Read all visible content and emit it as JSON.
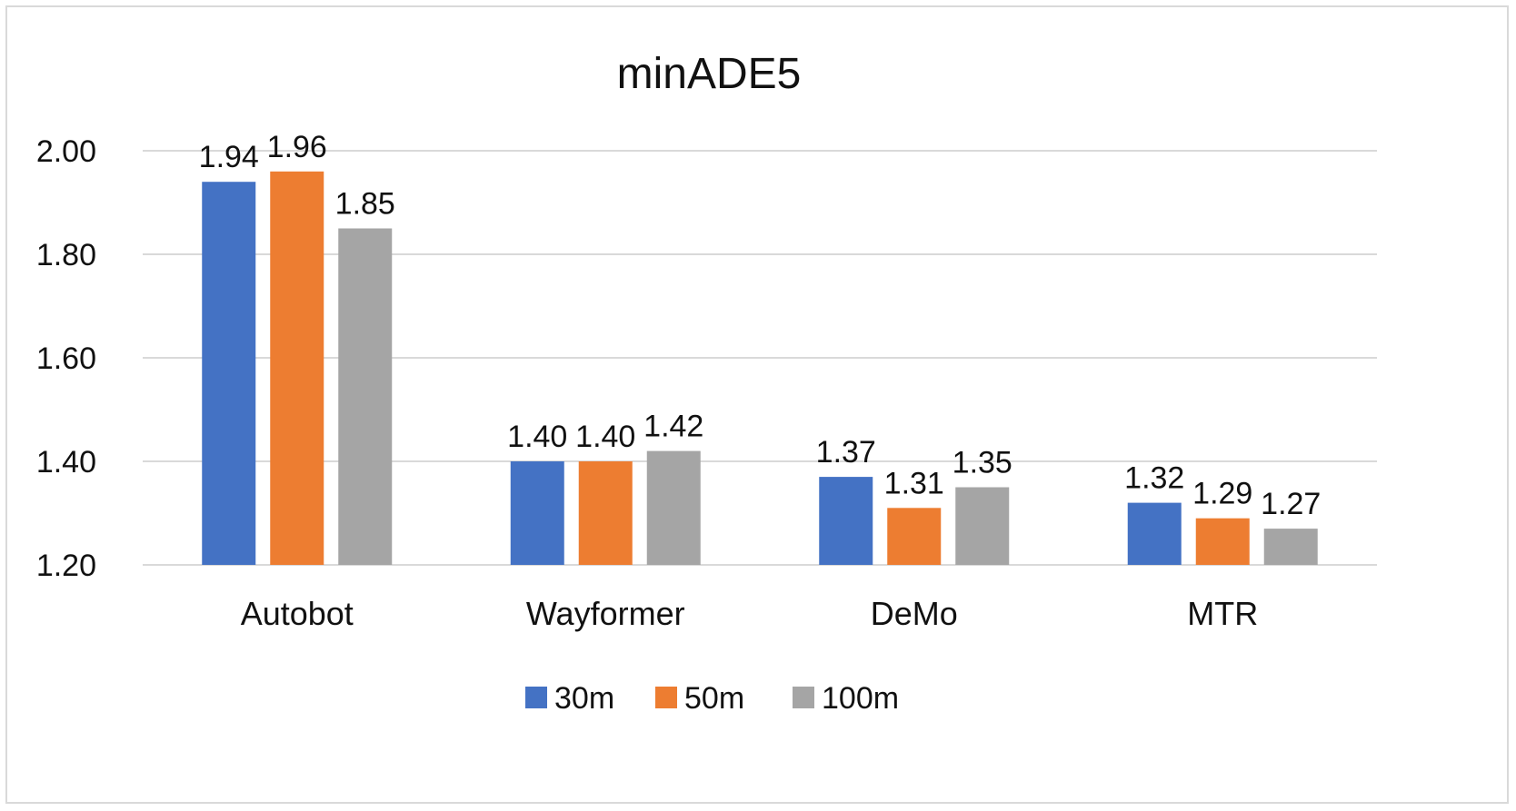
{
  "chart_data": {
    "type": "bar",
    "title": "minADE5",
    "categories": [
      "Autobot",
      "Wayformer",
      "DeMo",
      "MTR"
    ],
    "series": [
      {
        "name": "30m",
        "color": "#4472C4",
        "values": [
          1.94,
          1.4,
          1.37,
          1.32
        ],
        "labels": [
          "1.94",
          "1.40",
          "1.37",
          "1.32"
        ]
      },
      {
        "name": "50m",
        "color": "#ED7D31",
        "values": [
          1.96,
          1.4,
          1.31,
          1.29
        ],
        "labels": [
          "1.96",
          "1.40",
          "1.31",
          "1.29"
        ]
      },
      {
        "name": "100m",
        "color": "#A5A5A5",
        "values": [
          1.85,
          1.42,
          1.35,
          1.27
        ],
        "labels": [
          "1.85",
          "1.42",
          "1.35",
          "1.27"
        ]
      }
    ],
    "ylim": [
      1.2,
      2.0
    ],
    "yticks": [
      "1.20",
      "1.40",
      "1.60",
      "1.80",
      "2.00"
    ],
    "ytick_values": [
      1.2,
      1.4,
      1.6,
      1.8,
      2.0
    ],
    "xlabel": "",
    "ylabel": "",
    "grid": true,
    "legend_position": "bottom"
  }
}
